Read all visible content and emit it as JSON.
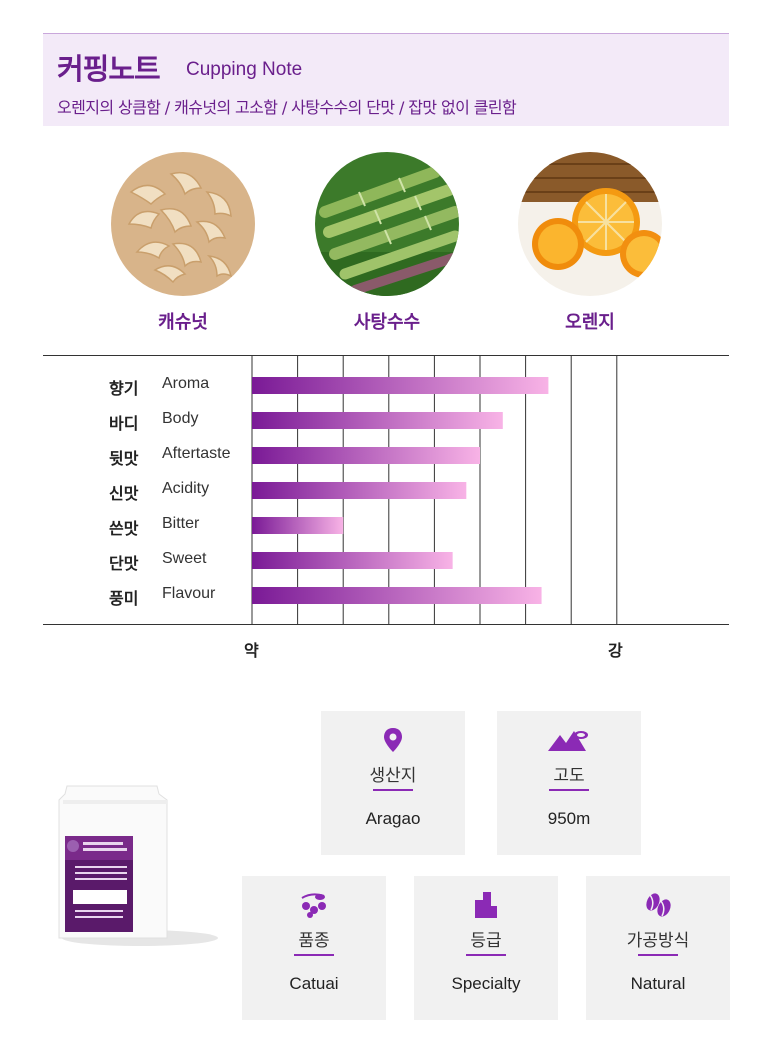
{
  "header": {
    "title": "커핑노트",
    "subtitle": "Cupping Note",
    "description": "오렌지의 상큼함 / 캐슈넛의 고소함 / 사탕수수의 단맛 / 잡맛 없이 클린함"
  },
  "flavors": [
    {
      "label": "캐슈넛",
      "icon": "cashew-image"
    },
    {
      "label": "사탕수수",
      "icon": "sugarcane-image"
    },
    {
      "label": "오렌지",
      "icon": "orange-image"
    }
  ],
  "chart_data": {
    "type": "bar",
    "orientation": "horizontal",
    "categories": [
      {
        "ko": "향기",
        "en": "Aroma"
      },
      {
        "ko": "바디",
        "en": "Body"
      },
      {
        "ko": "뒷맛",
        "en": "Aftertaste"
      },
      {
        "ko": "신맛",
        "en": "Acidity"
      },
      {
        "ko": "쓴맛",
        "en": "Bitter"
      },
      {
        "ko": "단맛",
        "en": "Sweet"
      },
      {
        "ko": "풍미",
        "en": "Flavour"
      }
    ],
    "values": [
      6.5,
      5.5,
      5.0,
      4.7,
      2.0,
      4.4,
      6.35
    ],
    "xlim": [
      0,
      8
    ],
    "x_min_label": "약",
    "x_max_label": "강",
    "grid": true,
    "colors": {
      "start": "#7a1a96",
      "end": "#f8b3e6"
    }
  },
  "info": {
    "origin": {
      "label": "생산지",
      "value": "Aragao",
      "icon": "location-pin-icon"
    },
    "altitude": {
      "label": "고도",
      "value": "950m",
      "icon": "mountain-icon"
    },
    "variety": {
      "label": "품종",
      "value": "Catuai",
      "icon": "coffee-cherry-icon"
    },
    "grade": {
      "label": "등급",
      "value": "Specialty",
      "icon": "grade-icon"
    },
    "process": {
      "label": "가공방식",
      "value": "Natural",
      "icon": "coffee-bean-icon"
    }
  },
  "accent_color": "#8b2ab5"
}
